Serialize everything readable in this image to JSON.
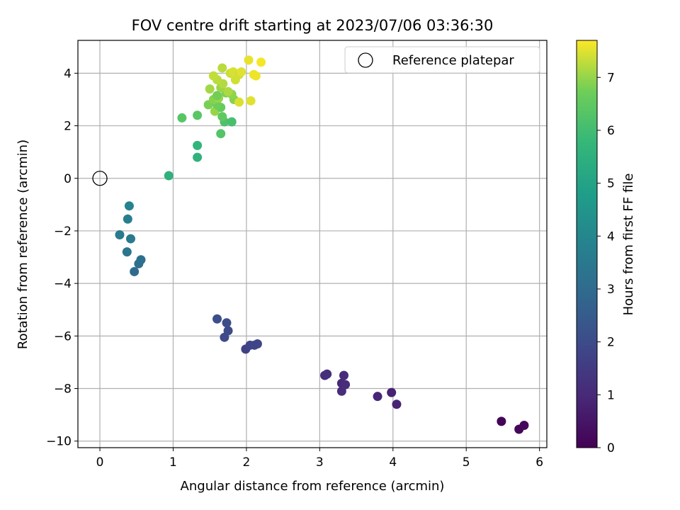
{
  "chart_data": {
    "type": "scatter",
    "title": "FOV centre drift starting at 2023/07/06 03:36:30",
    "xlabel": "Angular distance from reference (arcmin)",
    "ylabel": "Rotation from reference (arcmin)",
    "xlim": [
      -0.3,
      6.1
    ],
    "ylim": [
      -10.25,
      5.25
    ],
    "xticks": [
      0,
      1,
      2,
      3,
      4,
      5,
      6
    ],
    "xtick_labels": [
      "0",
      "1",
      "2",
      "3",
      "4",
      "5",
      "6"
    ],
    "yticks": [
      -10,
      -8,
      -6,
      -4,
      -2,
      0,
      2,
      4
    ],
    "ytick_labels": [
      "−10",
      "−8",
      "−6",
      "−4",
      "−2",
      "0",
      "2",
      "4"
    ],
    "grid": true,
    "colormap": "viridis",
    "colorbar": {
      "label": "Hours from first FF file",
      "range": [
        0,
        7.7
      ],
      "ticks": [
        0,
        1,
        2,
        3,
        4,
        5,
        6,
        7
      ],
      "tick_labels": [
        "0",
        "1",
        "2",
        "3",
        "4",
        "5",
        "6",
        "7"
      ]
    },
    "reference": {
      "label": "Reference platepar",
      "x": 0,
      "y": 0
    },
    "legend_position": "top-right",
    "points": [
      {
        "x": 5.48,
        "y": -9.25,
        "c": 0.1
      },
      {
        "x": 5.72,
        "y": -9.55,
        "c": 0.15
      },
      {
        "x": 5.79,
        "y": -9.4,
        "c": 0.2
      },
      {
        "x": 3.98,
        "y": -8.15,
        "c": 0.8
      },
      {
        "x": 4.05,
        "y": -8.6,
        "c": 0.85
      },
      {
        "x": 3.79,
        "y": -8.3,
        "c": 0.9
      },
      {
        "x": 3.3,
        "y": -7.8,
        "c": 1.0
      },
      {
        "x": 3.33,
        "y": -7.5,
        "c": 1.05
      },
      {
        "x": 3.35,
        "y": -7.85,
        "c": 1.1
      },
      {
        "x": 3.3,
        "y": -8.1,
        "c": 1.1
      },
      {
        "x": 3.07,
        "y": -7.5,
        "c": 1.15
      },
      {
        "x": 3.1,
        "y": -7.45,
        "c": 1.2
      },
      {
        "x": 1.99,
        "y": -6.5,
        "c": 1.7
      },
      {
        "x": 2.05,
        "y": -6.35,
        "c": 1.75
      },
      {
        "x": 2.11,
        "y": -6.35,
        "c": 1.8
      },
      {
        "x": 2.15,
        "y": -6.3,
        "c": 1.85
      },
      {
        "x": 1.7,
        "y": -6.05,
        "c": 1.95
      },
      {
        "x": 1.75,
        "y": -5.8,
        "c": 2.0
      },
      {
        "x": 1.73,
        "y": -5.5,
        "c": 2.05
      },
      {
        "x": 1.6,
        "y": -5.35,
        "c": 2.1
      },
      {
        "x": 0.47,
        "y": -3.55,
        "c": 3.0
      },
      {
        "x": 0.53,
        "y": -3.25,
        "c": 3.1
      },
      {
        "x": 0.56,
        "y": -3.1,
        "c": 3.2
      },
      {
        "x": 0.37,
        "y": -2.8,
        "c": 3.4
      },
      {
        "x": 0.42,
        "y": -2.3,
        "c": 3.55
      },
      {
        "x": 0.27,
        "y": -2.15,
        "c": 3.6
      },
      {
        "x": 0.38,
        "y": -1.55,
        "c": 3.75
      },
      {
        "x": 0.4,
        "y": -1.05,
        "c": 3.85
      },
      {
        "x": 0.94,
        "y": 0.1,
        "c": 5.5
      },
      {
        "x": 1.33,
        "y": 0.8,
        "c": 5.6
      },
      {
        "x": 1.33,
        "y": 1.25,
        "c": 5.65
      },
      {
        "x": 1.65,
        "y": 1.7,
        "c": 6.3
      },
      {
        "x": 1.12,
        "y": 2.3,
        "c": 6.35
      },
      {
        "x": 1.33,
        "y": 2.4,
        "c": 6.4
      },
      {
        "x": 1.7,
        "y": 2.15,
        "c": 6.2
      },
      {
        "x": 1.8,
        "y": 2.15,
        "c": 6.1
      },
      {
        "x": 1.67,
        "y": 2.35,
        "c": 6.5
      },
      {
        "x": 1.57,
        "y": 2.55,
        "c": 7.0
      },
      {
        "x": 1.65,
        "y": 2.7,
        "c": 6.6
      },
      {
        "x": 1.48,
        "y": 2.8,
        "c": 6.8
      },
      {
        "x": 1.6,
        "y": 2.8,
        "c": 6.7
      },
      {
        "x": 1.55,
        "y": 3.0,
        "c": 6.9
      },
      {
        "x": 1.62,
        "y": 3.05,
        "c": 7.0
      },
      {
        "x": 1.6,
        "y": 3.15,
        "c": 6.75
      },
      {
        "x": 1.72,
        "y": 3.25,
        "c": 6.85
      },
      {
        "x": 1.83,
        "y": 3.0,
        "c": 6.9
      },
      {
        "x": 1.8,
        "y": 3.2,
        "c": 6.95
      },
      {
        "x": 1.5,
        "y": 3.4,
        "c": 7.1
      },
      {
        "x": 1.65,
        "y": 3.45,
        "c": 7.05
      },
      {
        "x": 1.68,
        "y": 3.6,
        "c": 7.2
      },
      {
        "x": 1.75,
        "y": 3.3,
        "c": 7.15
      },
      {
        "x": 1.6,
        "y": 3.75,
        "c": 7.25
      },
      {
        "x": 1.55,
        "y": 3.9,
        "c": 7.3
      },
      {
        "x": 1.67,
        "y": 4.2,
        "c": 7.25
      },
      {
        "x": 1.78,
        "y": 4.0,
        "c": 7.35
      },
      {
        "x": 1.85,
        "y": 3.75,
        "c": 7.4
      },
      {
        "x": 1.82,
        "y": 4.05,
        "c": 7.45
      },
      {
        "x": 1.9,
        "y": 3.95,
        "c": 7.4
      },
      {
        "x": 1.93,
        "y": 4.05,
        "c": 7.5
      },
      {
        "x": 1.9,
        "y": 2.9,
        "c": 7.45
      },
      {
        "x": 2.06,
        "y": 2.95,
        "c": 7.5
      },
      {
        "x": 2.03,
        "y": 4.5,
        "c": 7.55
      },
      {
        "x": 2.1,
        "y": 3.95,
        "c": 7.6
      },
      {
        "x": 2.13,
        "y": 3.9,
        "c": 7.6
      },
      {
        "x": 2.2,
        "y": 4.42,
        "c": 7.65
      }
    ]
  }
}
